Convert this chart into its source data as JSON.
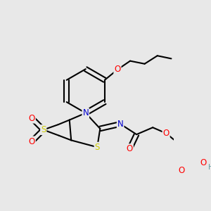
{
  "bg_color": "#e8e8e8",
  "atom_colors": {
    "C": "#000000",
    "N": "#0000cd",
    "O": "#ff0000",
    "S": "#cccc00",
    "H": "#5f9ea0"
  },
  "bond_color": "#000000",
  "bond_width": 1.5,
  "font_size": 8.5
}
